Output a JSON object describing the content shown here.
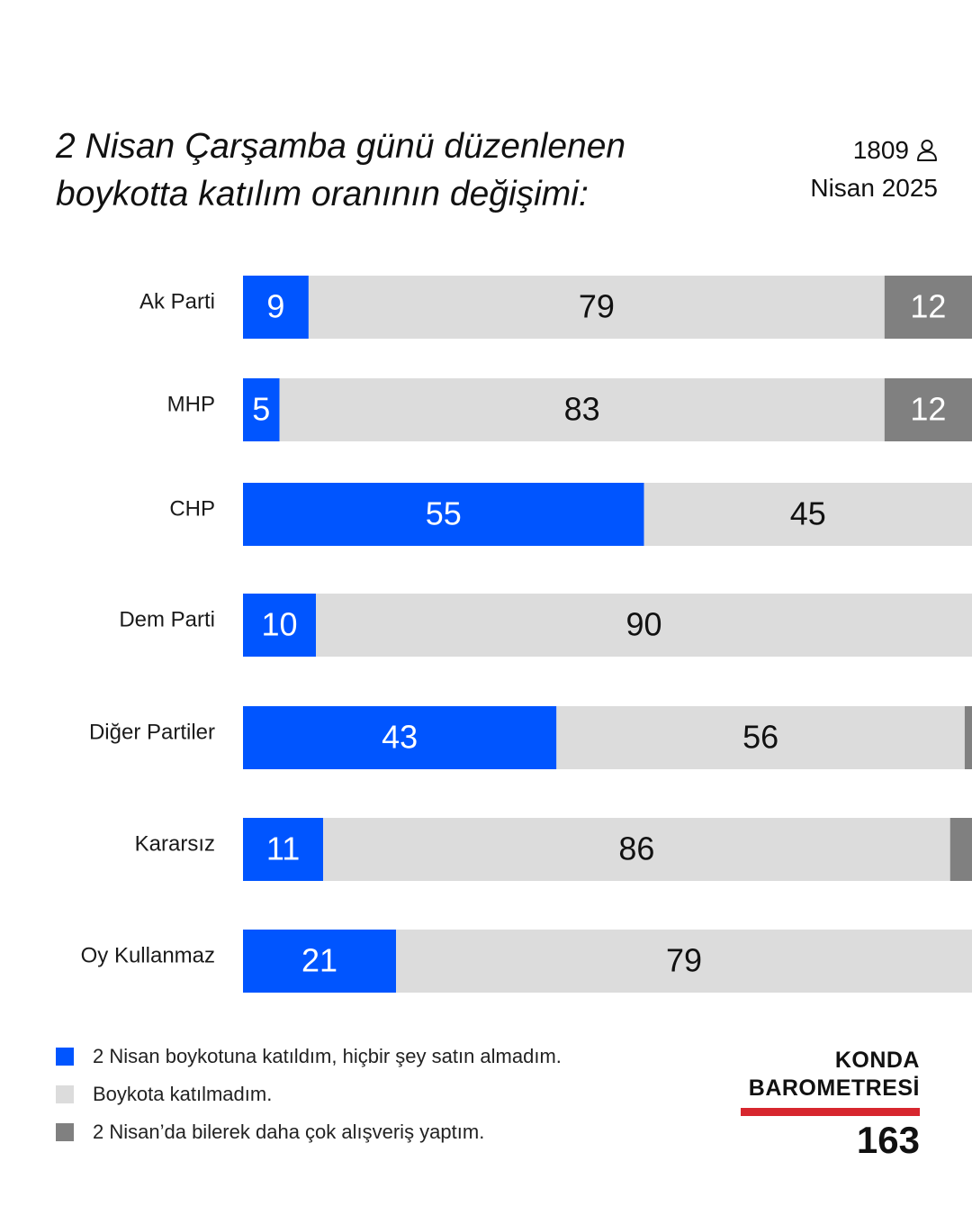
{
  "header": {
    "title_line1": "2 Nisan Çarşamba günü düzenlenen",
    "title_line2": "boykotta katılım oranının değişimi:",
    "sample_size": "1809",
    "sample_icon": "person-icon",
    "date": "Nisan 2025"
  },
  "colors": {
    "boycott": "#0055ff",
    "not_joined": "#dcdcdc",
    "shopped_more": "#808080",
    "brand_accent": "#d7262e"
  },
  "chart_data": {
    "type": "bar",
    "orientation": "horizontal",
    "stacked": true,
    "unit": "%",
    "title": "2 Nisan Çarşamba günü düzenlenen boykotta katılım oranının değişimi:",
    "categories": [
      "Ak Parti",
      "MHP",
      "CHP",
      "Dem Parti",
      "Diğer Partiler",
      "Kararsız",
      "Oy Kullanmaz"
    ],
    "series": [
      {
        "name": "2 Nisan boykotuna katıldım, hiçbir şey satın almadım.",
        "color": "#0055ff",
        "label_color": "#ffffff",
        "values": [
          9,
          5,
          55,
          10,
          43,
          11,
          21
        ],
        "labels": [
          "9",
          "5",
          "55",
          "10",
          "43",
          "11",
          "21"
        ]
      },
      {
        "name": "Boykota katılmadım.",
        "color": "#dcdcdc",
        "label_color": "#111111",
        "values": [
          79,
          83,
          45,
          90,
          56,
          86,
          79
        ],
        "labels": [
          "79",
          "83",
          "45",
          "90",
          "56",
          "86",
          "79"
        ]
      },
      {
        "name": "2 Nisan’da bilerek daha çok alışveriş yaptım.",
        "color": "#808080",
        "label_color": "#ffffff",
        "values": [
          12,
          12,
          0,
          0,
          1,
          3,
          0
        ],
        "labels": [
          "12",
          "12",
          "",
          "",
          "",
          "",
          ""
        ]
      }
    ],
    "xlim": [
      0,
      100
    ],
    "legend": "bottom-left",
    "grid": false
  },
  "legend": {
    "items": [
      {
        "label": "2 Nisan boykotuna katıldım, hiçbir şey satın almadım.",
        "color": "#0055ff"
      },
      {
        "label": "Boykota katılmadım.",
        "color": "#dcdcdc"
      },
      {
        "label": "2 Nisan’da bilerek daha çok alışveriş yaptım.",
        "color": "#808080"
      }
    ]
  },
  "brand": {
    "line1": "KONDA",
    "line2": "BAROMETRESİ",
    "number": "163"
  }
}
